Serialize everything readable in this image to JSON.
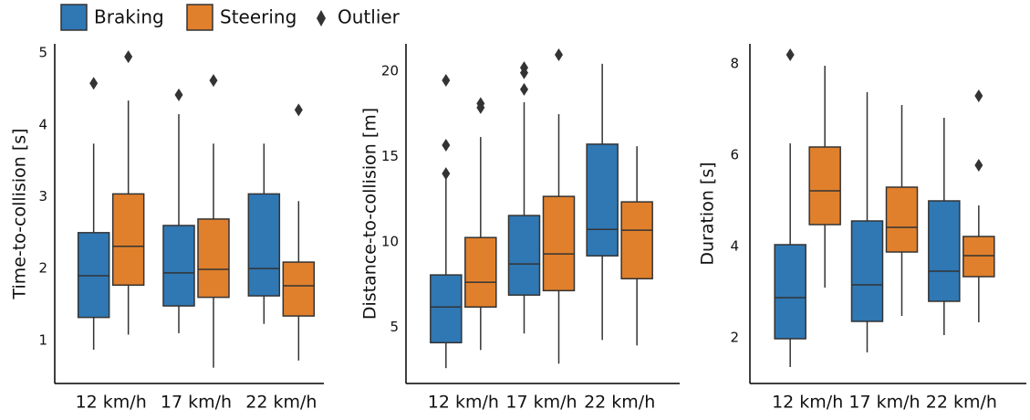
{
  "chart_data": [
    {
      "type": "box",
      "ylabel": "Time-to-collision [s]",
      "categories": [
        "12 km/h",
        "17 km/h",
        "22 km/h"
      ],
      "ylim": [
        0.4,
        5.13
      ],
      "yticks": [
        1,
        2,
        3,
        4,
        5
      ],
      "outlier_label": "Outlier",
      "series": [
        {
          "name": "Braking",
          "color": "#2f78b4",
          "boxes": [
            {
              "whislo": 0.87,
              "q1": 1.32,
              "med": 1.9,
              "q3": 2.5,
              "whishi": 3.74,
              "fliers": [
                4.58
              ]
            },
            {
              "whislo": 1.1,
              "q1": 1.48,
              "med": 1.94,
              "q3": 2.6,
              "whishi": 4.15,
              "fliers": [
                4.42
              ]
            },
            {
              "whislo": 1.23,
              "q1": 1.62,
              "med": 2.0,
              "q3": 3.04,
              "whishi": 3.74,
              "fliers": []
            }
          ]
        },
        {
          "name": "Steering",
          "color": "#e0802c",
          "boxes": [
            {
              "whislo": 1.08,
              "q1": 1.77,
              "med": 2.31,
              "q3": 3.04,
              "whishi": 4.34,
              "fliers": [
                4.95
              ]
            },
            {
              "whislo": 0.62,
              "q1": 1.6,
              "med": 1.99,
              "q3": 2.69,
              "whishi": 3.74,
              "fliers": [
                4.62
              ]
            },
            {
              "whislo": 0.72,
              "q1": 1.34,
              "med": 1.76,
              "q3": 2.09,
              "whishi": 2.94,
              "fliers": [
                4.21
              ]
            }
          ]
        }
      ]
    },
    {
      "type": "box",
      "ylabel": "Distance-to-collision [m]",
      "categories": [
        "12 km/h",
        "17 km/h",
        "22 km/h"
      ],
      "ylim": [
        1.7,
        21.6
      ],
      "yticks": [
        5,
        10,
        15,
        20
      ],
      "series": [
        {
          "name": "Braking",
          "color": "#2f78b4",
          "boxes": [
            {
              "whislo": 2.6,
              "q1": 4.09,
              "med": 6.18,
              "q3": 8.06,
              "whishi": 13.7,
              "fliers": [
                19.46,
                15.66,
                14.0
              ]
            },
            {
              "whislo": 4.63,
              "q1": 6.88,
              "med": 8.7,
              "q3": 11.54,
              "whishi": 18.18,
              "fliers": [
                20.2,
                19.9,
                18.93
              ]
            },
            {
              "whislo": 4.25,
              "q1": 9.18,
              "med": 10.73,
              "q3": 15.72,
              "whishi": 20.43,
              "fliers": []
            }
          ]
        },
        {
          "name": "Steering",
          "color": "#e0802c",
          "boxes": [
            {
              "whislo": 3.66,
              "q1": 6.18,
              "med": 7.63,
              "q3": 10.25,
              "whishi": 16.14,
              "fliers": [
                18.1,
                17.86
              ]
            },
            {
              "whislo": 2.86,
              "q1": 7.14,
              "med": 9.29,
              "q3": 12.66,
              "whishi": 17.48,
              "fliers": [
                20.96
              ]
            },
            {
              "whislo": 3.93,
              "q1": 7.84,
              "med": 10.68,
              "q3": 12.34,
              "whishi": 15.6,
              "fliers": []
            }
          ]
        }
      ]
    },
    {
      "type": "box",
      "ylabel": "Duration [s]",
      "categories": [
        "12 km/h",
        "17 km/h",
        "22 km/h"
      ],
      "ylim": [
        1.0,
        8.44
      ],
      "yticks": [
        2,
        4,
        6,
        8
      ],
      "series": [
        {
          "name": "Braking",
          "color": "#2f78b4",
          "boxes": [
            {
              "whislo": 1.36,
              "q1": 1.98,
              "med": 2.88,
              "q3": 4.04,
              "whishi": 6.26,
              "fliers": [
                8.2
              ]
            },
            {
              "whislo": 1.68,
              "q1": 2.36,
              "med": 3.16,
              "q3": 4.56,
              "whishi": 7.38,
              "fliers": []
            },
            {
              "whislo": 2.06,
              "q1": 2.8,
              "med": 3.46,
              "q3": 5.0,
              "whishi": 6.82,
              "fliers": []
            }
          ]
        },
        {
          "name": "Steering",
          "color": "#e0802c",
          "boxes": [
            {
              "whislo": 3.1,
              "q1": 4.48,
              "med": 5.22,
              "q3": 6.18,
              "whishi": 7.96,
              "fliers": []
            },
            {
              "whislo": 2.48,
              "q1": 3.88,
              "med": 4.42,
              "q3": 5.3,
              "whishi": 7.1,
              "fliers": []
            },
            {
              "whislo": 2.34,
              "q1": 3.34,
              "med": 3.8,
              "q3": 4.22,
              "whishi": 4.9,
              "fliers": [
                7.3,
                5.78
              ]
            }
          ]
        }
      ]
    }
  ]
}
